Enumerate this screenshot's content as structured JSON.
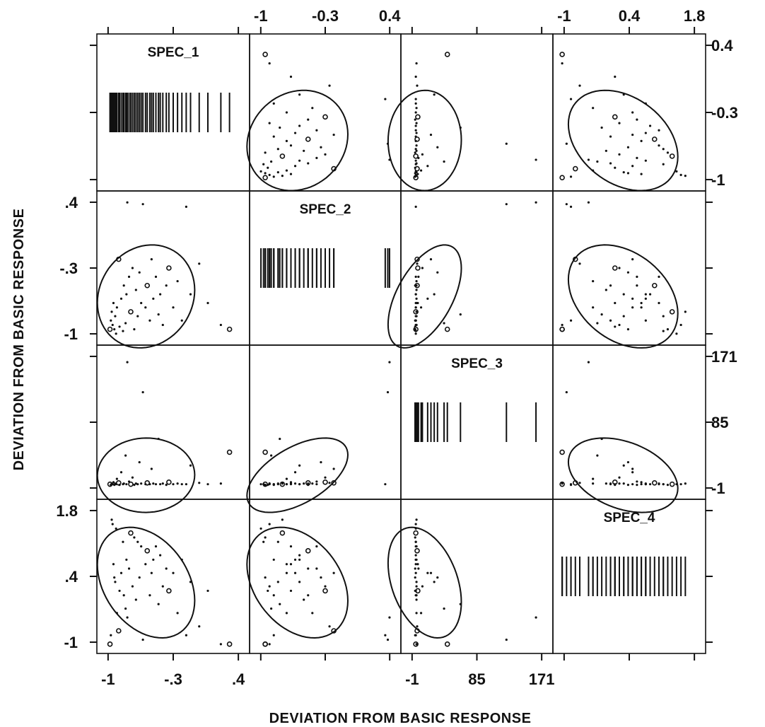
{
  "chart_data": {
    "type": "scatter",
    "variables": [
      "SPEC_1",
      "SPEC_2",
      "SPEC_3",
      "SPEC_4"
    ],
    "xlabel": "DEVIATION FROM BASIC RESPONSE",
    "ylabel": "DEVIATION FROM BASIC RESPONSE",
    "ranges": {
      "SPEC_1": [
        -1.05,
        0.55
      ],
      "SPEC_2": [
        -1.05,
        0.55
      ],
      "SPEC_3": [
        -10,
        200
      ],
      "SPEC_4": [
        -1.05,
        2.1
      ]
    },
    "tick_labels": {
      "SPEC_1": [
        "-1",
        "-.3",
        ".4"
      ],
      "SPEC_2": [
        ".4",
        "-.3",
        "-1"
      ],
      "SPEC_2_top": [
        "-1",
        "-0.3",
        "0.4"
      ],
      "SPEC_1_right": [
        "0.4",
        "-0.3",
        "-1"
      ],
      "SPEC_3": [
        "-1",
        "85",
        "171"
      ],
      "SPEC_3_right": [
        "171",
        "85",
        "-1"
      ],
      "SPEC_4": [
        "1.8",
        ".4",
        "-1"
      ],
      "SPEC_4_top": [
        "-1",
        "0.4",
        "1.8"
      ]
    },
    "observations": [
      {
        "s1": -0.98,
        "s2": -0.95,
        "s3": 2,
        "s4": -1.0
      },
      {
        "s1": -0.97,
        "s2": -0.85,
        "s3": 1,
        "s4": -0.8
      },
      {
        "s1": -0.96,
        "s2": -0.75,
        "s3": 3,
        "s4": 1.8
      },
      {
        "s1": -0.95,
        "s2": -0.9,
        "s3": 2,
        "s4": 1.7
      },
      {
        "s1": -0.94,
        "s2": -0.65,
        "s3": 5,
        "s4": 0.8
      },
      {
        "s1": -0.93,
        "s2": -0.95,
        "s3": 1,
        "s4": 0.5
      },
      {
        "s1": -0.92,
        "s2": -0.8,
        "s3": 3,
        "s4": 0.4
      },
      {
        "s1": -0.91,
        "s2": -1.0,
        "s3": 2,
        "s4": 1.6
      },
      {
        "s1": -0.9,
        "s2": -0.7,
        "s3": 10,
        "s4": -0.3
      },
      {
        "s1": -0.88,
        "s2": -0.15,
        "s3": 4,
        "s4": -0.7
      },
      {
        "s1": -0.87,
        "s2": -0.92,
        "s3": 1,
        "s4": 0.2
      },
      {
        "s1": -0.85,
        "s2": -0.6,
        "s3": 20,
        "s4": 0.6
      },
      {
        "s1": -0.83,
        "s2": -0.97,
        "s3": 2,
        "s4": 1.3
      },
      {
        "s1": -0.82,
        "s2": -0.45,
        "s3": 3,
        "s4": 0.1
      },
      {
        "s1": -0.8,
        "s2": -0.88,
        "s3": 45,
        "s4": -0.2
      },
      {
        "s1": -0.79,
        "s2": -0.55,
        "s3": 2,
        "s4": 0.9
      },
      {
        "s1": -0.78,
        "s2": 0.5,
        "s3": 185,
        "s4": -0.4
      },
      {
        "s1": -0.76,
        "s2": -0.35,
        "s3": 6,
        "s4": 0.7
      },
      {
        "s1": -0.74,
        "s2": -0.75,
        "s3": 2,
        "s4": 1.5
      },
      {
        "s1": -0.72,
        "s2": -0.25,
        "s3": 12,
        "s4": 0.3
      },
      {
        "s1": -0.7,
        "s2": -0.95,
        "s3": 1,
        "s4": 1.4
      },
      {
        "s1": -0.68,
        "s2": -0.5,
        "s3": 3,
        "s4": 0.0
      },
      {
        "s1": -0.66,
        "s2": -0.8,
        "s3": 2,
        "s4": 1.3
      },
      {
        "s1": -0.64,
        "s2": -0.3,
        "s3": 35,
        "s4": 0.5
      },
      {
        "s1": -0.62,
        "s2": -0.65,
        "s3": 3,
        "s4": 1.2
      },
      {
        "s1": -0.6,
        "s2": 0.48,
        "s3": 140,
        "s4": -0.9
      },
      {
        "s1": -0.57,
        "s2": -0.7,
        "s3": 2,
        "s4": 0.8
      },
      {
        "s1": -0.55,
        "s2": -0.45,
        "s3": 4,
        "s4": 1.1
      },
      {
        "s1": -0.52,
        "s2": -0.85,
        "s3": 2,
        "s4": 0.1
      },
      {
        "s1": -0.5,
        "s2": -0.15,
        "s3": 25,
        "s4": 0.6
      },
      {
        "s1": -0.48,
        "s2": -0.6,
        "s3": 3,
        "s4": 0.9
      },
      {
        "s1": -0.45,
        "s2": -0.35,
        "s3": 2,
        "s4": 1.2
      },
      {
        "s1": -0.42,
        "s2": -0.78,
        "s3": 70,
        "s4": -0.1
      },
      {
        "s1": -0.4,
        "s2": -0.55,
        "s3": 2,
        "s4": 1.0
      },
      {
        "s1": -0.37,
        "s2": -0.9,
        "s3": 3,
        "s4": 0.3
      },
      {
        "s1": -0.33,
        "s2": -0.45,
        "s3": 1,
        "s4": 0.7
      },
      {
        "s1": -0.3,
        "s2": -0.25,
        "s3": 5,
        "s4": 0.2
      },
      {
        "s1": -0.25,
        "s2": -0.7,
        "s3": 2,
        "s4": 0.6
      },
      {
        "s1": -0.2,
        "s2": -0.4,
        "s3": 3,
        "s4": -0.3
      },
      {
        "s1": -0.15,
        "s2": -0.85,
        "s3": 2,
        "s4": 0.9
      },
      {
        "s1": -0.1,
        "s2": 0.45,
        "s3": 2,
        "s4": -0.8
      },
      {
        "s1": -0.05,
        "s2": -0.55,
        "s3": 30,
        "s4": 0.4
      },
      {
        "s1": 0.05,
        "s2": -0.2,
        "s3": 4,
        "s4": -0.6
      },
      {
        "s1": 0.15,
        "s2": -0.65,
        "s3": 2,
        "s4": 0.2
      },
      {
        "s1": 0.3,
        "s2": -0.9,
        "s3": 3,
        "s4": -1.0
      },
      {
        "s1": 0.4,
        "s2": -0.95,
        "s3": 50,
        "s4": -1.0
      }
    ]
  }
}
